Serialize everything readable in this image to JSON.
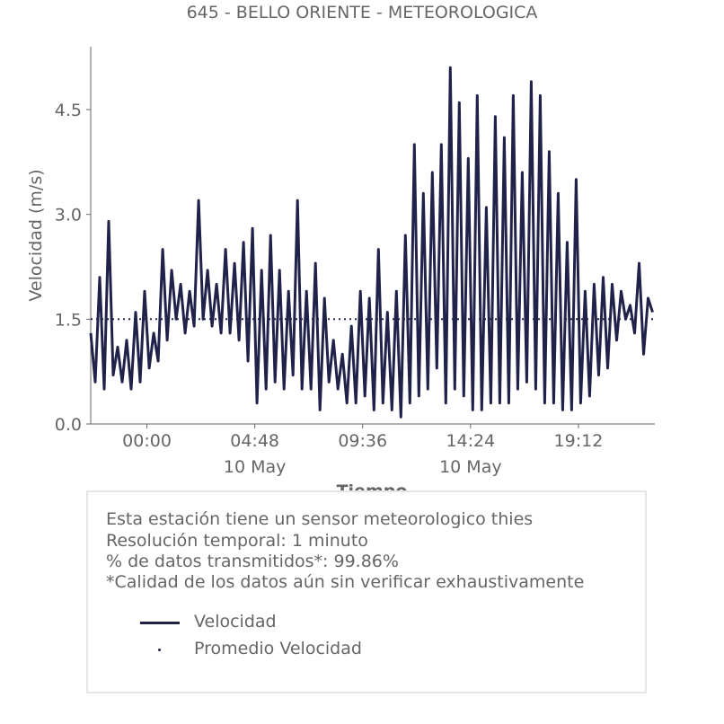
{
  "chart_data": {
    "type": "line",
    "title": "645 - BELLO ORIENTE - METEOROLOGICA",
    "xlabel": "Tiempo",
    "ylabel": "Velocidad (m/s)",
    "ylim": [
      0,
      5.4
    ],
    "yticks": [
      {
        "value": 0.0,
        "label": "0.0"
      },
      {
        "value": 1.5,
        "label": "1.5"
      },
      {
        "value": 3.0,
        "label": "3.0"
      },
      {
        "value": 4.5,
        "label": "4.5"
      }
    ],
    "xlim": [
      -2.5,
      22.6
    ],
    "xticks": [
      {
        "value": 0,
        "label": "00:00",
        "sublabel": ""
      },
      {
        "value": 4.8,
        "label": "04:48",
        "sublabel": "10 May"
      },
      {
        "value": 9.6,
        "label": "09:36",
        "sublabel": ""
      },
      {
        "value": 14.4,
        "label": "14:24",
        "sublabel": "10 May"
      },
      {
        "value": 19.2,
        "label": "19:12",
        "sublabel": ""
      }
    ],
    "grid": false,
    "series": [
      {
        "name": "Velocidad",
        "color": "#21224a",
        "x": [
          -2.5,
          -2.3,
          -2.1,
          -1.9,
          -1.7,
          -1.5,
          -1.3,
          -1.1,
          -0.9,
          -0.7,
          -0.5,
          -0.3,
          -0.1,
          0.1,
          0.3,
          0.5,
          0.7,
          0.9,
          1.1,
          1.3,
          1.5,
          1.7,
          1.9,
          2.1,
          2.3,
          2.5,
          2.7,
          2.9,
          3.1,
          3.3,
          3.5,
          3.7,
          3.9,
          4.1,
          4.3,
          4.5,
          4.7,
          4.9,
          5.1,
          5.3,
          5.5,
          5.7,
          5.9,
          6.1,
          6.3,
          6.5,
          6.7,
          6.9,
          7.1,
          7.3,
          7.5,
          7.7,
          7.9,
          8.1,
          8.3,
          8.5,
          8.7,
          8.9,
          9.1,
          9.3,
          9.5,
          9.7,
          9.9,
          10.1,
          10.3,
          10.5,
          10.7,
          10.9,
          11.1,
          11.3,
          11.5,
          11.7,
          11.9,
          12.1,
          12.3,
          12.5,
          12.7,
          12.9,
          13.1,
          13.3,
          13.5,
          13.7,
          13.9,
          14.1,
          14.3,
          14.5,
          14.7,
          14.9,
          15.1,
          15.3,
          15.5,
          15.7,
          15.9,
          16.1,
          16.3,
          16.5,
          16.7,
          16.9,
          17.1,
          17.3,
          17.5,
          17.7,
          17.9,
          18.1,
          18.3,
          18.5,
          18.7,
          18.9,
          19.1,
          19.3,
          19.5,
          19.7,
          19.9,
          20.1,
          20.3,
          20.5,
          20.7,
          20.9,
          21.1,
          21.3,
          21.5,
          21.7,
          21.9,
          22.1,
          22.3,
          22.5
        ],
        "values": [
          1.3,
          0.6,
          2.1,
          0.5,
          2.9,
          0.7,
          1.1,
          0.6,
          1.2,
          0.5,
          1.6,
          0.6,
          1.9,
          0.8,
          1.3,
          0.9,
          2.5,
          1.2,
          2.2,
          1.5,
          2.0,
          1.3,
          1.9,
          1.4,
          3.2,
          1.5,
          2.2,
          1.4,
          2.0,
          1.3,
          2.5,
          1.3,
          2.3,
          1.2,
          2.6,
          0.9,
          2.8,
          0.3,
          2.2,
          0.5,
          2.7,
          0.6,
          2.2,
          0.5,
          1.9,
          0.7,
          3.2,
          0.5,
          1.9,
          0.5,
          2.3,
          0.2,
          1.8,
          0.6,
          1.2,
          0.5,
          1.0,
          0.3,
          1.4,
          0.3,
          1.9,
          0.4,
          1.8,
          0.2,
          2.5,
          0.3,
          1.6,
          0.2,
          1.9,
          0.1,
          2.7,
          0.3,
          4.0,
          0.4,
          3.3,
          0.5,
          3.6,
          0.8,
          4.0,
          0.3,
          5.1,
          0.5,
          4.6,
          0.4,
          3.8,
          0.2,
          4.7,
          0.2,
          3.1,
          0.3,
          4.4,
          0.3,
          4.1,
          0.3,
          4.7,
          0.5,
          3.6,
          0.6,
          4.9,
          0.5,
          4.7,
          0.3,
          3.9,
          0.3,
          3.3,
          0.2,
          2.6,
          0.2,
          3.5,
          0.3,
          1.9,
          0.4,
          2.0,
          0.7,
          2.1,
          0.8,
          2.0,
          1.2,
          1.9,
          1.5,
          1.7,
          1.3,
          2.3,
          1.0,
          1.8,
          1.6
        ]
      },
      {
        "name": "Promedio Velocidad",
        "color": "#21224a",
        "style": "dotted",
        "x": [
          -2.5,
          22.6
        ],
        "values": [
          1.5,
          1.5
        ]
      }
    ]
  },
  "legend_box": {
    "notes": [
      "Esta estación tiene un sensor meteorologico thies",
      "Resolución temporal: 1 minuto",
      "% de datos transmitidos*: 99.86%",
      "*Calidad de los datos aún sin verificar exhaustivamente"
    ],
    "entries": [
      {
        "label": "Velocidad",
        "style": "line"
      },
      {
        "label": "Promedio Velocidad",
        "style": "dot"
      }
    ]
  }
}
